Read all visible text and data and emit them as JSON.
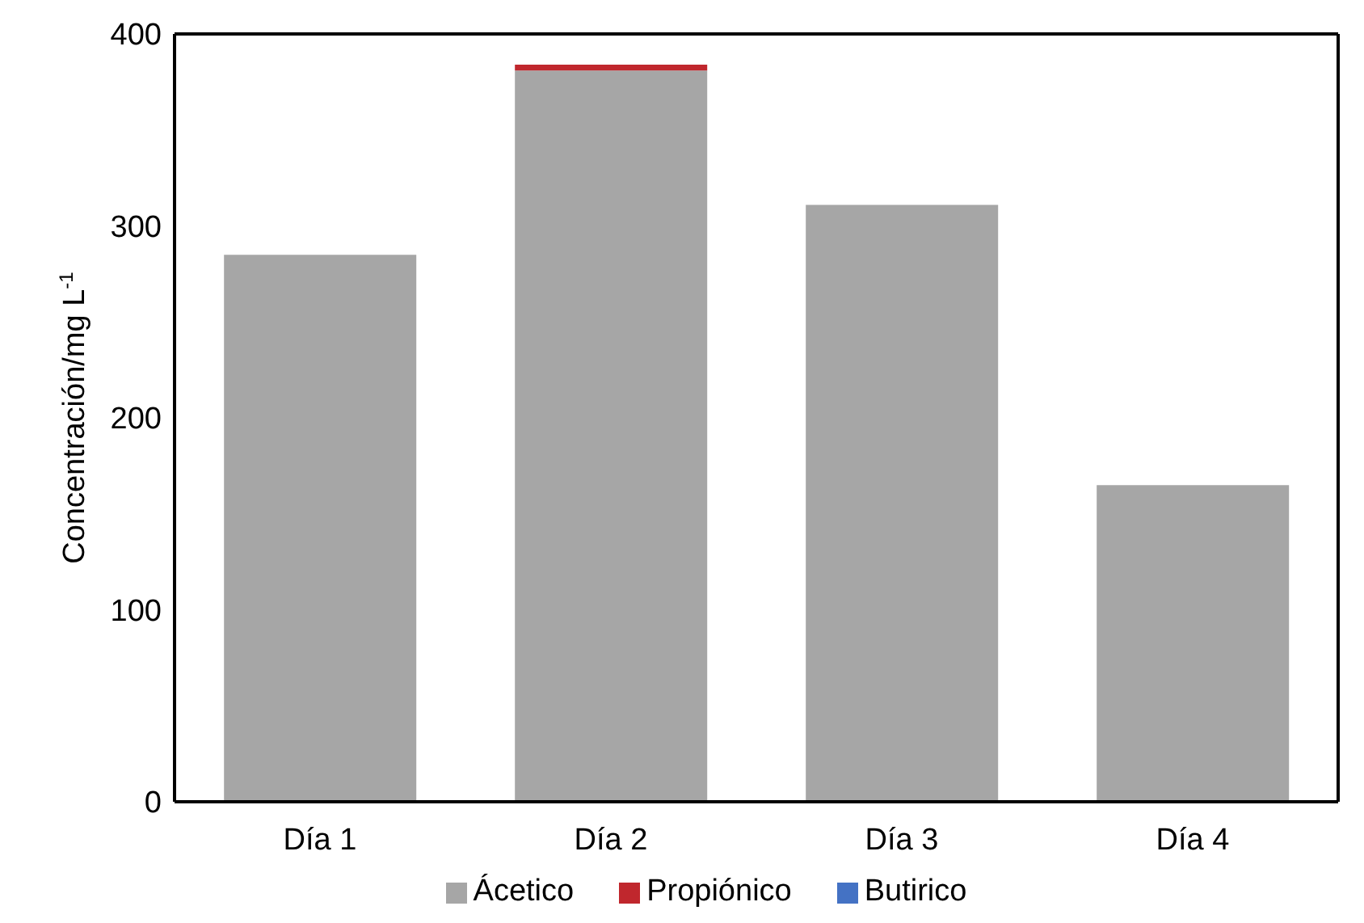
{
  "chart_data": {
    "type": "bar",
    "stacked": true,
    "categories": [
      "Día 1",
      "Día 2",
      "Día 3",
      "Día 4"
    ],
    "ylabel": "Concentración/mg L$^{-1}$",
    "ylim": [
      0,
      400
    ],
    "yticks": [
      0,
      100,
      200,
      300,
      400
    ],
    "grid": false,
    "legend": "bottom",
    "series": [
      {
        "name": "Ácetico",
        "color": "#a6a6a6",
        "values": [
          285,
          381,
          311,
          165
        ]
      },
      {
        "name": "Propiónico",
        "color": "#c0272d",
        "values": [
          0,
          3,
          0,
          0
        ]
      },
      {
        "name": "Butirico",
        "color": "#4472c4",
        "values": [
          0,
          0,
          0,
          0
        ]
      }
    ]
  }
}
